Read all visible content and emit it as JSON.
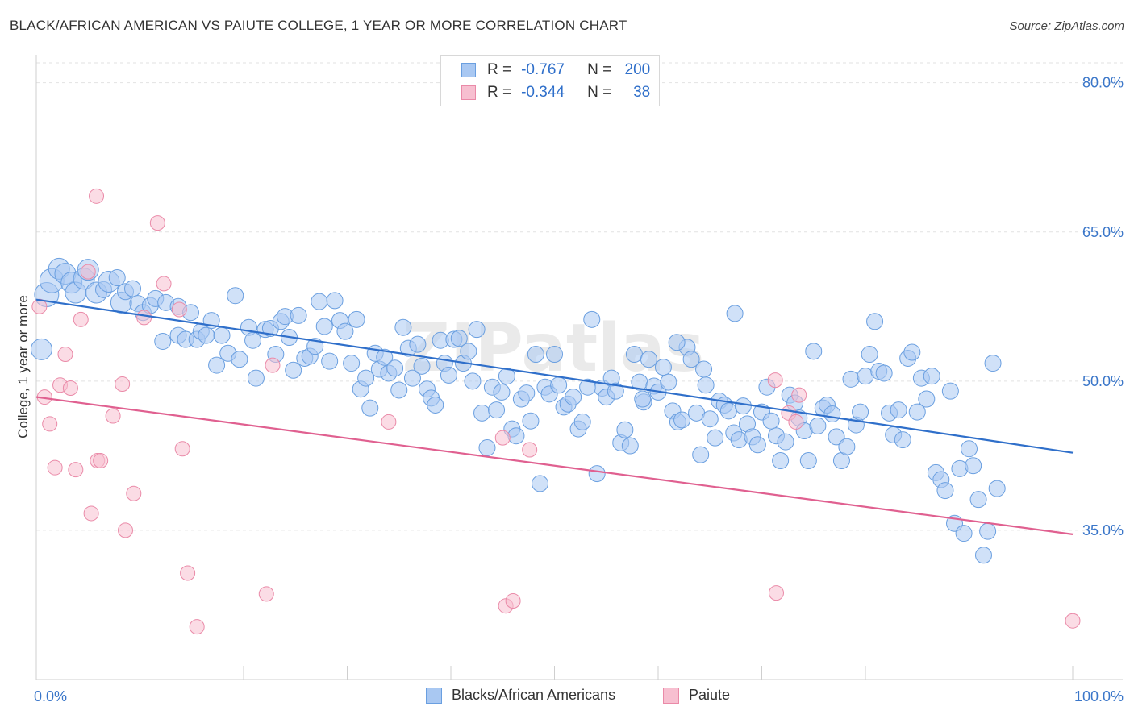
{
  "title": "BLACK/AFRICAN AMERICAN VS PAIUTE COLLEGE, 1 YEAR OR MORE CORRELATION CHART",
  "source": "Source: ZipAtlas.com",
  "watermark": "ZIPatlas",
  "legend": {
    "rows": [
      {
        "r_label": "R =",
        "r_value": "-0.767",
        "n_label": "N =",
        "n_value": "200",
        "color": "#a9c8f2"
      },
      {
        "r_label": "R =",
        "r_value": "-0.344",
        "n_label": "N =",
        "n_value": "38",
        "color": "#f7bfd0"
      }
    ]
  },
  "bottom_legend": [
    {
      "label": "Blacks/African Americans",
      "color": "#a9c8f2"
    },
    {
      "label": "Paiute",
      "color": "#f7bfd0"
    }
  ],
  "chart_data": {
    "type": "scatter",
    "title": "BLACK/AFRICAN AMERICAN VS PAIUTE COLLEGE, 1 YEAR OR MORE CORRELATION CHART",
    "xlabel": "",
    "ylabel": "College, 1 year or more",
    "xlim": [
      0,
      100
    ],
    "ylim": [
      20,
      82
    ],
    "x_tick_labels": [
      "0.0%",
      "100.0%"
    ],
    "y_ticks": [
      35,
      50,
      65,
      80
    ],
    "y_tick_labels": [
      "35.0%",
      "50.0%",
      "65.0%",
      "80.0%"
    ],
    "grid": true,
    "legend_position": "top-center",
    "series": [
      {
        "name": "Blacks/African Americans",
        "color": "#a9c8f2",
        "edge": "#6a9fe0",
        "line_color": "#2f6fca",
        "trend": {
          "x": [
            0,
            100
          ],
          "y": [
            58.2,
            42.8
          ]
        },
        "points": [
          [
            0.5,
            53.2,
            2
          ],
          [
            1.0,
            58.7,
            3
          ],
          [
            1.5,
            60.1,
            3
          ],
          [
            2.2,
            61.3,
            2
          ],
          [
            2.8,
            60.8,
            2
          ],
          [
            3.4,
            59.9,
            2
          ],
          [
            3.8,
            58.9,
            2
          ],
          [
            4.6,
            60.3,
            2
          ],
          [
            5.0,
            61.2,
            2
          ],
          [
            5.8,
            58.9,
            2
          ],
          [
            6.5,
            59.2,
            1
          ],
          [
            7.0,
            60.0,
            2
          ],
          [
            7.8,
            60.4,
            1
          ],
          [
            8.2,
            57.9,
            2
          ],
          [
            8.6,
            59.0,
            1
          ],
          [
            9.3,
            59.3,
            1
          ],
          [
            9.8,
            57.8,
            1
          ],
          [
            10.3,
            56.9,
            1
          ],
          [
            11.0,
            57.6,
            1
          ],
          [
            11.5,
            58.3,
            1
          ],
          [
            12.5,
            57.9,
            1
          ],
          [
            12.2,
            54.0,
            1
          ],
          [
            13.7,
            57.5,
            1
          ],
          [
            13.7,
            54.6,
            1
          ],
          [
            14.4,
            54.2,
            1
          ],
          [
            14.9,
            56.9,
            1
          ],
          [
            15.5,
            54.2,
            1
          ],
          [
            15.9,
            55.0,
            1
          ],
          [
            16.4,
            54.6,
            1
          ],
          [
            16.9,
            56.1,
            1
          ],
          [
            17.4,
            51.6,
            1
          ],
          [
            17.9,
            54.6,
            1
          ],
          [
            18.5,
            52.8,
            1
          ],
          [
            19.2,
            58.6,
            1
          ],
          [
            19.6,
            52.2,
            1
          ],
          [
            20.5,
            55.4,
            1
          ],
          [
            20.9,
            54.1,
            1
          ],
          [
            21.2,
            50.3,
            1
          ],
          [
            22.1,
            55.2,
            1
          ],
          [
            22.6,
            55.3,
            1
          ],
          [
            23.1,
            52.7,
            1
          ],
          [
            23.6,
            56.0,
            1
          ],
          [
            24.0,
            56.5,
            1
          ],
          [
            24.4,
            54.4,
            1
          ],
          [
            24.8,
            51.1,
            1
          ],
          [
            25.3,
            56.6,
            1
          ],
          [
            25.9,
            52.3,
            1
          ],
          [
            26.4,
            52.5,
            1
          ],
          [
            26.9,
            53.5,
            1
          ],
          [
            27.3,
            58.0,
            1
          ],
          [
            27.8,
            55.5,
            1
          ],
          [
            28.3,
            52.0,
            1
          ],
          [
            28.8,
            58.1,
            1
          ],
          [
            29.3,
            56.1,
            1
          ],
          [
            29.8,
            55.0,
            1
          ],
          [
            30.4,
            51.8,
            1
          ],
          [
            30.9,
            56.2,
            1
          ],
          [
            31.3,
            49.2,
            1
          ],
          [
            31.8,
            50.3,
            1
          ],
          [
            32.2,
            47.3,
            1
          ],
          [
            32.7,
            52.8,
            1
          ],
          [
            33.1,
            51.2,
            1
          ],
          [
            33.6,
            52.4,
            1
          ],
          [
            34.0,
            50.8,
            1
          ],
          [
            34.6,
            51.3,
            1
          ],
          [
            35.0,
            49.1,
            1
          ],
          [
            35.4,
            55.4,
            1
          ],
          [
            35.9,
            53.3,
            1
          ],
          [
            36.3,
            50.3,
            1
          ],
          [
            36.8,
            53.7,
            1
          ],
          [
            37.2,
            51.5,
            1
          ],
          [
            37.7,
            49.2,
            1
          ],
          [
            38.1,
            48.3,
            1
          ],
          [
            38.5,
            47.6,
            1
          ],
          [
            39.0,
            54.1,
            1
          ],
          [
            39.4,
            51.8,
            1
          ],
          [
            39.8,
            50.6,
            1
          ],
          [
            40.3,
            54.2,
            1
          ],
          [
            40.8,
            54.3,
            1
          ],
          [
            41.2,
            51.8,
            1
          ],
          [
            41.7,
            53.0,
            1
          ],
          [
            42.1,
            50.0,
            1
          ],
          [
            42.5,
            55.2,
            1
          ],
          [
            43.0,
            46.8,
            1
          ],
          [
            43.5,
            43.3,
            1
          ],
          [
            44.0,
            49.4,
            1
          ],
          [
            44.4,
            47.1,
            1
          ],
          [
            44.9,
            48.9,
            1
          ],
          [
            45.4,
            50.5,
            1
          ],
          [
            45.9,
            45.2,
            1
          ],
          [
            46.3,
            44.5,
            1
          ],
          [
            46.8,
            48.2,
            1
          ],
          [
            47.3,
            48.8,
            1
          ],
          [
            47.7,
            46.0,
            1
          ],
          [
            48.2,
            52.7,
            1
          ],
          [
            48.6,
            39.7,
            1
          ],
          [
            49.1,
            49.4,
            1
          ],
          [
            49.5,
            48.7,
            1
          ],
          [
            50.0,
            52.7,
            1
          ],
          [
            50.4,
            49.6,
            1
          ],
          [
            50.9,
            47.4,
            1
          ],
          [
            51.3,
            47.7,
            1
          ],
          [
            51.8,
            48.4,
            1
          ],
          [
            52.3,
            45.2,
            1
          ],
          [
            52.7,
            45.9,
            1
          ],
          [
            53.2,
            49.4,
            1
          ],
          [
            53.6,
            56.2,
            1
          ],
          [
            54.1,
            40.7,
            1
          ],
          [
            54.6,
            49.3,
            1
          ],
          [
            55.0,
            48.4,
            1
          ],
          [
            55.5,
            50.3,
            1
          ],
          [
            55.9,
            49.0,
            1
          ],
          [
            56.4,
            43.8,
            1
          ],
          [
            56.8,
            45.1,
            1
          ],
          [
            57.3,
            43.5,
            1
          ],
          [
            57.7,
            52.7,
            1
          ],
          [
            58.2,
            49.9,
            1
          ],
          [
            58.6,
            47.9,
            1
          ],
          [
            59.1,
            52.2,
            1
          ],
          [
            59.6,
            49.5,
            1
          ],
          [
            60.0,
            48.9,
            1
          ],
          [
            60.5,
            51.4,
            1
          ],
          [
            61.0,
            49.9,
            1
          ],
          [
            61.4,
            47.0,
            1
          ],
          [
            61.9,
            45.9,
            1
          ],
          [
            62.3,
            46.1,
            1
          ],
          [
            62.8,
            53.4,
            1
          ],
          [
            63.2,
            52.2,
            1
          ],
          [
            63.7,
            46.8,
            1
          ],
          [
            64.1,
            42.6,
            1
          ],
          [
            64.6,
            49.6,
            1
          ],
          [
            65.0,
            46.2,
            1
          ],
          [
            65.5,
            44.3,
            1
          ],
          [
            65.9,
            48.0,
            1
          ],
          [
            66.4,
            47.6,
            1
          ],
          [
            66.8,
            47.0,
            1
          ],
          [
            67.3,
            44.8,
            1
          ],
          [
            67.8,
            44.1,
            1
          ],
          [
            68.2,
            47.5,
            1
          ],
          [
            68.6,
            45.7,
            1
          ],
          [
            69.1,
            44.4,
            1
          ],
          [
            69.6,
            43.6,
            1
          ],
          [
            70.0,
            46.9,
            1
          ],
          [
            70.5,
            49.4,
            1
          ],
          [
            70.9,
            46.0,
            1
          ],
          [
            71.4,
            44.5,
            1
          ],
          [
            71.8,
            42.0,
            1
          ],
          [
            72.3,
            43.9,
            1
          ],
          [
            72.7,
            48.6,
            1
          ],
          [
            73.2,
            47.8,
            1
          ],
          [
            73.6,
            46.3,
            1
          ],
          [
            74.1,
            45.0,
            1
          ],
          [
            74.5,
            42.0,
            1
          ],
          [
            75.0,
            53.0,
            1
          ],
          [
            75.4,
            45.5,
            1
          ],
          [
            75.9,
            47.3,
            1
          ],
          [
            76.3,
            47.6,
            1
          ],
          [
            76.8,
            46.7,
            1
          ],
          [
            77.2,
            44.4,
            1
          ],
          [
            77.7,
            42.0,
            1
          ],
          [
            78.2,
            43.4,
            1
          ],
          [
            78.6,
            50.2,
            1
          ],
          [
            79.1,
            45.6,
            1
          ],
          [
            79.5,
            46.9,
            1
          ],
          [
            80.0,
            50.5,
            1
          ],
          [
            80.4,
            52.7,
            1
          ],
          [
            80.9,
            56.0,
            1
          ],
          [
            81.3,
            51.0,
            1
          ],
          [
            81.8,
            50.8,
            1
          ],
          [
            82.3,
            46.8,
            1
          ],
          [
            82.7,
            44.6,
            1
          ],
          [
            83.2,
            47.1,
            1
          ],
          [
            83.6,
            44.1,
            1
          ],
          [
            84.1,
            52.3,
            1
          ],
          [
            84.5,
            52.9,
            1
          ],
          [
            85.0,
            46.9,
            1
          ],
          [
            85.4,
            50.3,
            1
          ],
          [
            85.9,
            48.2,
            1
          ],
          [
            86.4,
            50.5,
            1
          ],
          [
            86.8,
            40.8,
            1
          ],
          [
            87.3,
            40.1,
            1
          ],
          [
            87.7,
            39.0,
            1
          ],
          [
            88.2,
            49.0,
            1
          ],
          [
            88.6,
            35.7,
            1
          ],
          [
            89.1,
            41.2,
            1
          ],
          [
            89.5,
            34.7,
            1
          ],
          [
            90.0,
            43.2,
            1
          ],
          [
            90.4,
            41.5,
            1
          ],
          [
            90.9,
            38.1,
            1
          ],
          [
            91.4,
            32.5,
            1
          ],
          [
            91.8,
            34.9,
            1
          ],
          [
            92.3,
            51.8,
            1
          ],
          [
            92.7,
            39.2,
            1
          ],
          [
            67.4,
            56.8,
            1
          ],
          [
            61.8,
            53.9,
            1
          ],
          [
            58.5,
            48.2,
            1
          ],
          [
            64.4,
            51.2,
            1
          ]
        ]
      },
      {
        "name": "Paiute",
        "color": "#f7bfd0",
        "edge": "#ea8aa8",
        "line_color": "#e06090",
        "trend": {
          "x": [
            0,
            100
          ],
          "y": [
            48.4,
            34.6
          ]
        },
        "points": [
          [
            0.3,
            57.5
          ],
          [
            0.8,
            48.4
          ],
          [
            1.3,
            45.7
          ],
          [
            1.8,
            41.3
          ],
          [
            2.3,
            49.6
          ],
          [
            2.8,
            52.7
          ],
          [
            3.3,
            49.3
          ],
          [
            3.8,
            41.1
          ],
          [
            4.3,
            56.2
          ],
          [
            5.0,
            61.0
          ],
          [
            5.3,
            36.7
          ],
          [
            5.9,
            42.0
          ],
          [
            6.2,
            42.0
          ],
          [
            5.8,
            68.6
          ],
          [
            7.4,
            46.5
          ],
          [
            8.3,
            49.7
          ],
          [
            8.6,
            35.0
          ],
          [
            9.4,
            38.7
          ],
          [
            10.4,
            56.4
          ],
          [
            11.7,
            65.9
          ],
          [
            12.3,
            59.8
          ],
          [
            13.8,
            57.2
          ],
          [
            14.1,
            43.2
          ],
          [
            14.6,
            30.7
          ],
          [
            15.5,
            25.3
          ],
          [
            22.2,
            28.6
          ],
          [
            22.8,
            51.6
          ],
          [
            34.0,
            45.9
          ],
          [
            45.0,
            44.3
          ],
          [
            45.3,
            27.4
          ],
          [
            46.0,
            27.9
          ],
          [
            47.6,
            43.1
          ],
          [
            71.4,
            28.7
          ],
          [
            71.3,
            50.1
          ],
          [
            72.6,
            46.8
          ],
          [
            73.3,
            45.9
          ],
          [
            73.6,
            48.6
          ],
          [
            100.0,
            25.9
          ]
        ]
      }
    ]
  }
}
